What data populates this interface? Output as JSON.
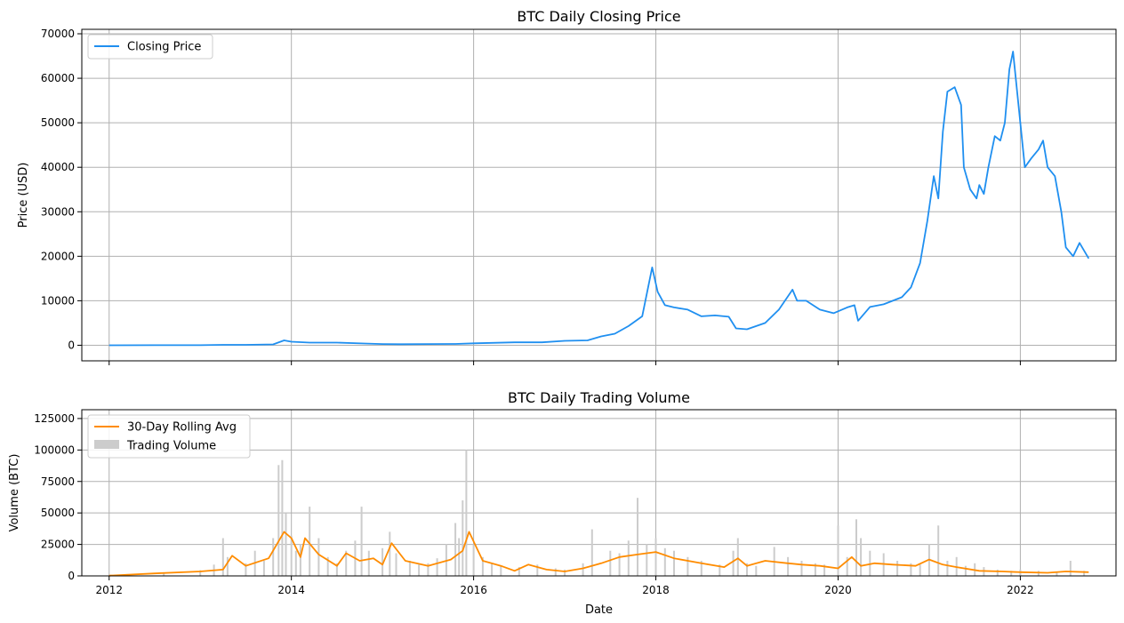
{
  "chart_data": [
    {
      "type": "line",
      "title": "BTC Daily Closing Price",
      "xlabel": "",
      "ylabel": "Price (USD)",
      "x_is_year": true,
      "xlim": [
        2011.7,
        2023.05
      ],
      "ylim": [
        -3500,
        71000
      ],
      "xticks": [
        2012,
        2014,
        2016,
        2018,
        2020,
        2022
      ],
      "xticklabels": [],
      "yticks": [
        0,
        10000,
        20000,
        30000,
        40000,
        50000,
        60000,
        70000
      ],
      "yticklabels": [
        "0",
        "10000",
        "20000",
        "30000",
        "40000",
        "50000",
        "60000",
        "70000"
      ],
      "grid": true,
      "legend": "upper-left",
      "series": [
        {
          "name": "Closing Price",
          "color": "#1f8ff0",
          "x": [
            2012.0,
            2012.5,
            2013.0,
            2013.25,
            2013.5,
            2013.8,
            2013.92,
            2014.0,
            2014.2,
            2014.5,
            2014.8,
            2015.0,
            2015.2,
            2015.5,
            2015.8,
            2016.0,
            2016.45,
            2016.75,
            2017.0,
            2017.25,
            2017.4,
            2017.55,
            2017.7,
            2017.85,
            2017.96,
            2018.02,
            2018.1,
            2018.2,
            2018.35,
            2018.5,
            2018.65,
            2018.8,
            2018.88,
            2019.0,
            2019.2,
            2019.35,
            2019.5,
            2019.55,
            2019.65,
            2019.8,
            2019.95,
            2020.1,
            2020.18,
            2020.22,
            2020.35,
            2020.5,
            2020.6,
            2020.7,
            2020.8,
            2020.9,
            2020.98,
            2021.05,
            2021.1,
            2021.15,
            2021.2,
            2021.28,
            2021.35,
            2021.38,
            2021.45,
            2021.52,
            2021.55,
            2021.6,
            2021.65,
            2021.72,
            2021.78,
            2021.83,
            2021.88,
            2021.92,
            2022.0,
            2022.05,
            2022.12,
            2022.2,
            2022.25,
            2022.3,
            2022.38,
            2022.45,
            2022.5,
            2022.58,
            2022.65,
            2022.75
          ],
          "y": [
            5,
            6,
            13,
            100,
            90,
            200,
            1100,
            800,
            600,
            600,
            400,
            280,
            240,
            270,
            290,
            430,
            650,
            650,
            1000,
            1100,
            2000,
            2600,
            4300,
            6500,
            17500,
            12000,
            9000,
            8500,
            8000,
            6500,
            6700,
            6400,
            3800,
            3600,
            5000,
            8000,
            12500,
            10000,
            10000,
            8000,
            7200,
            8500,
            9000,
            5500,
            8600,
            9200,
            10000,
            10800,
            13000,
            18500,
            28000,
            38000,
            33000,
            48000,
            57000,
            58000,
            54000,
            40000,
            35000,
            33000,
            36000,
            34000,
            40000,
            47000,
            46000,
            50000,
            62000,
            66000,
            50000,
            40000,
            42000,
            44000,
            46000,
            40000,
            38000,
            30000,
            22000,
            20000,
            23000,
            19500
          ]
        }
      ]
    },
    {
      "type": "bar",
      "title": "BTC Daily Trading Volume",
      "xlabel": "Date",
      "ylabel": "Volume (BTC)",
      "x_is_year": true,
      "xlim": [
        2011.7,
        2023.05
      ],
      "ylim": [
        0,
        132000
      ],
      "xticks": [
        2012,
        2014,
        2016,
        2018,
        2020,
        2022
      ],
      "xticklabels": [
        "2012",
        "2014",
        "2016",
        "2018",
        "2020",
        "2022"
      ],
      "yticks": [
        0,
        25000,
        50000,
        75000,
        100000,
        125000
      ],
      "yticklabels": [
        "0",
        "25000",
        "50000",
        "75000",
        "100000",
        "125000"
      ],
      "grid": true,
      "legend": "upper-left",
      "series": [
        {
          "name": "30-Day Rolling Avg",
          "type": "line",
          "color": "#ff8c00",
          "x": [
            2012.0,
            2012.5,
            2013.0,
            2013.25,
            2013.35,
            2013.5,
            2013.75,
            2013.92,
            2014.0,
            2014.1,
            2014.15,
            2014.3,
            2014.5,
            2014.6,
            2014.75,
            2014.9,
            2015.0,
            2015.1,
            2015.25,
            2015.5,
            2015.75,
            2015.88,
            2015.95,
            2016.1,
            2016.3,
            2016.45,
            2016.6,
            2016.8,
            2017.0,
            2017.2,
            2017.4,
            2017.6,
            2017.8,
            2018.0,
            2018.2,
            2018.5,
            2018.75,
            2018.9,
            2019.0,
            2019.2,
            2019.45,
            2019.6,
            2019.8,
            2020.0,
            2020.15,
            2020.25,
            2020.4,
            2020.6,
            2020.85,
            2021.0,
            2021.15,
            2021.3,
            2021.55,
            2021.8,
            2022.0,
            2022.3,
            2022.5,
            2022.75
          ],
          "y": [
            200,
            2000,
            3500,
            5000,
            16000,
            8000,
            14000,
            35000,
            30000,
            15000,
            30000,
            17000,
            8000,
            18000,
            12000,
            14000,
            9000,
            26000,
            12000,
            8000,
            13000,
            20000,
            35000,
            12000,
            8000,
            4000,
            9000,
            5000,
            3500,
            6000,
            10000,
            15000,
            17000,
            19000,
            14000,
            10000,
            7000,
            14000,
            8000,
            12000,
            10000,
            9000,
            8000,
            6000,
            15000,
            8000,
            10000,
            9000,
            8000,
            13000,
            9000,
            7000,
            4000,
            3500,
            3000,
            2500,
            3500,
            3000
          ]
        },
        {
          "name": "Trading Volume",
          "type": "bar",
          "color": "#cccccc",
          "x": [
            2012.2,
            2012.6,
            2013.0,
            2013.15,
            2013.25,
            2013.3,
            2013.5,
            2013.6,
            2013.7,
            2013.8,
            2013.86,
            2013.9,
            2013.94,
            2014.0,
            2014.05,
            2014.1,
            2014.2,
            2014.3,
            2014.4,
            2014.5,
            2014.6,
            2014.7,
            2014.77,
            2014.85,
            2015.0,
            2015.08,
            2015.15,
            2015.3,
            2015.4,
            2015.5,
            2015.6,
            2015.7,
            2015.8,
            2015.84,
            2015.88,
            2015.92,
            2016.0,
            2016.1,
            2016.2,
            2016.3,
            2016.5,
            2016.7,
            2016.9,
            2017.0,
            2017.2,
            2017.3,
            2017.5,
            2017.6,
            2017.7,
            2017.8,
            2017.9,
            2018.0,
            2018.1,
            2018.2,
            2018.35,
            2018.5,
            2018.7,
            2018.85,
            2018.9,
            2019.0,
            2019.1,
            2019.3,
            2019.45,
            2019.6,
            2019.75,
            2019.85,
            2020.0,
            2020.1,
            2020.2,
            2020.25,
            2020.35,
            2020.5,
            2020.65,
            2020.8,
            2020.9,
            2021.0,
            2021.1,
            2021.2,
            2021.3,
            2021.4,
            2021.5,
            2021.6,
            2021.75,
            2021.9,
            2022.0,
            2022.2,
            2022.4,
            2022.55,
            2022.7
          ],
          "y": [
            1500,
            2500,
            4500,
            9000,
            30000,
            15000,
            10000,
            20000,
            12000,
            30000,
            88000,
            92000,
            50000,
            32000,
            20000,
            25000,
            55000,
            30000,
            15000,
            10000,
            20000,
            28000,
            55000,
            20000,
            22000,
            35000,
            18000,
            12000,
            9000,
            10000,
            14000,
            25000,
            42000,
            30000,
            60000,
            100000,
            25000,
            15000,
            10000,
            8000,
            7000,
            9000,
            6000,
            5000,
            10000,
            37000,
            20000,
            18000,
            28000,
            62000,
            25000,
            30000,
            22000,
            20000,
            15000,
            12000,
            9000,
            20000,
            30000,
            10000,
            8000,
            23000,
            15000,
            12000,
            10000,
            9000,
            40000,
            15000,
            45000,
            30000,
            20000,
            18000,
            12000,
            10000,
            9000,
            25000,
            40000,
            12000,
            15000,
            8000,
            10000,
            7000,
            5000,
            4000,
            5000,
            4000,
            3000,
            12000,
            4000
          ]
        }
      ]
    }
  ]
}
